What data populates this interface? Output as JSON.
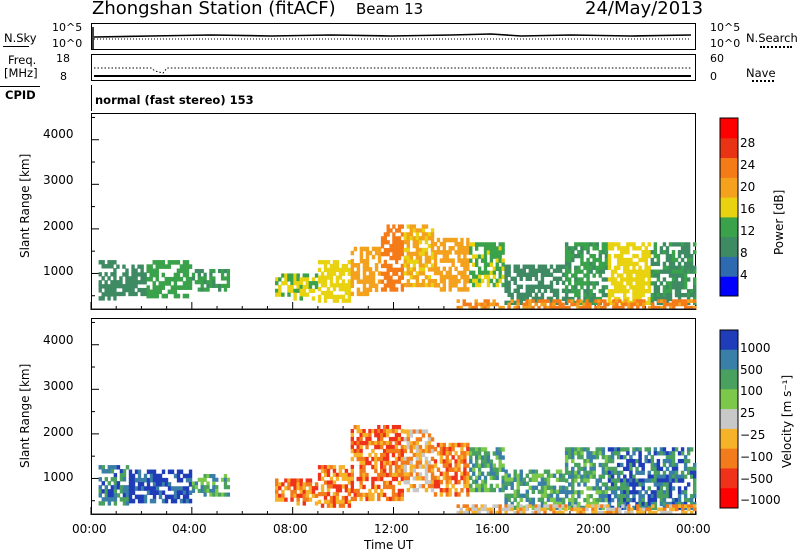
{
  "header": {
    "station": "Zhongshan Station (fitACF)",
    "beam": "Beam 13",
    "date": "24/May/2013"
  },
  "top_panel": {
    "nsky_label": "N.Sky",
    "nsky_top": "10^5",
    "nsky_bottom": "10^0",
    "nsearch_label": "N.Search",
    "nsearch_top": "10^5",
    "nsearch_bottom": "10^0",
    "freq_label": "Freq.",
    "freq_unit": "[MHz]",
    "freq_top": "18",
    "freq_bottom": "8",
    "nave_label": "Nave",
    "nave_top": "60",
    "nave_bottom": "0",
    "cpid_label": "CPID",
    "cpid_value": "normal (fast stereo) 153"
  },
  "colors": {
    "power_scale": [
      "#0000ff",
      "#2e6ab0",
      "#3e8a63",
      "#3aa24a",
      "#e9d20f",
      "#f4a11e",
      "#f57a18",
      "#e83314",
      "#ff0000"
    ],
    "velocity_scale": [
      "#ff0000",
      "#f0321a",
      "#f27c1c",
      "#f6b229",
      "#c8c8c8",
      "#7cc84a",
      "#4aa05e",
      "#3a7fa8",
      "#1f3db8"
    ]
  },
  "chart_data": [
    {
      "type": "heatmap",
      "name": "power",
      "ylabel": "Slant Range [km]",
      "xlabel": "",
      "ylim": [
        180,
        4600
      ],
      "yticks": [
        "1000",
        "2000",
        "3000",
        "4000"
      ],
      "xlim_hours": [
        0,
        24
      ],
      "colorbar_label": "Power [dB]",
      "colorbar_ticks": [
        "4",
        "8",
        "12",
        "16",
        "20",
        "24",
        "28"
      ],
      "colorbar_range": [
        0,
        32
      ],
      "patches": [
        {
          "t0": 0.3,
          "t1": 1.0,
          "r0": 400,
          "r1": 1300,
          "level": 10
        },
        {
          "t0": 1.0,
          "t1": 2.2,
          "r0": 500,
          "r1": 1200,
          "level": 9
        },
        {
          "t0": 2.2,
          "t1": 4.0,
          "r0": 450,
          "r1": 1300,
          "level": 13
        },
        {
          "t0": 4.0,
          "t1": 5.5,
          "r0": 600,
          "r1": 1100,
          "level": 12
        },
        {
          "t0": 7.3,
          "t1": 9.0,
          "r0": 400,
          "r1": 1000,
          "level": 16
        },
        {
          "t0": 9.0,
          "t1": 10.3,
          "r0": 350,
          "r1": 1300,
          "level": 18
        },
        {
          "t0": 10.3,
          "t1": 11.5,
          "r0": 500,
          "r1": 1600,
          "level": 22
        },
        {
          "t0": 11.5,
          "t1": 12.4,
          "r0": 600,
          "r1": 2100,
          "level": 26
        },
        {
          "t0": 12.4,
          "t1": 13.6,
          "r0": 700,
          "r1": 2100,
          "level": 20
        },
        {
          "t0": 13.6,
          "t1": 15.0,
          "r0": 600,
          "r1": 1800,
          "level": 22
        },
        {
          "t0": 15.0,
          "t1": 16.4,
          "r0": 700,
          "r1": 1700,
          "level": 15
        },
        {
          "t0": 16.4,
          "t1": 18.8,
          "r0": 300,
          "r1": 1200,
          "level": 10
        },
        {
          "t0": 18.8,
          "t1": 20.5,
          "r0": 300,
          "r1": 1700,
          "level": 12
        },
        {
          "t0": 20.5,
          "t1": 22.2,
          "r0": 300,
          "r1": 1700,
          "level": 17
        },
        {
          "t0": 22.2,
          "t1": 24.0,
          "r0": 300,
          "r1": 1700,
          "level": 11
        },
        {
          "t0": 14.5,
          "t1": 24.0,
          "r0": 200,
          "r1": 420,
          "level": 24
        }
      ]
    },
    {
      "type": "heatmap",
      "name": "velocity",
      "ylabel": "Slant Range [km]",
      "xlabel": "Time UT",
      "ylim": [
        180,
        4600
      ],
      "yticks": [
        "1000",
        "2000",
        "3000",
        "4000"
      ],
      "xticks": [
        "00:00",
        "04:00",
        "08:00",
        "12:00",
        "16:00",
        "20:00",
        "00:00"
      ],
      "xlim_hours": [
        0,
        24
      ],
      "colorbar_label": "Velocity [m s⁻¹]",
      "colorbar_ticks": [
        "1000",
        "500",
        "100",
        "25",
        "−25",
        "−100",
        "−500",
        "−1000"
      ],
      "patches": [
        {
          "t0": 0.3,
          "t1": 1.5,
          "r0": 400,
          "r1": 1300,
          "level": 7
        },
        {
          "t0": 1.5,
          "t1": 4.0,
          "r0": 450,
          "r1": 1200,
          "level": 8
        },
        {
          "t0": 4.0,
          "t1": 5.5,
          "r0": 600,
          "r1": 1100,
          "level": 6
        },
        {
          "t0": 7.3,
          "t1": 9.0,
          "r0": 400,
          "r1": 1000,
          "level": 2
        },
        {
          "t0": 9.0,
          "t1": 10.3,
          "r0": 350,
          "r1": 1300,
          "level": 2
        },
        {
          "t0": 10.3,
          "t1": 12.4,
          "r0": 500,
          "r1": 2200,
          "level": 2
        },
        {
          "t0": 12.4,
          "t1": 13.6,
          "r0": 700,
          "r1": 2100,
          "level": 3
        },
        {
          "t0": 13.6,
          "t1": 15.0,
          "r0": 600,
          "r1": 1800,
          "level": 2
        },
        {
          "t0": 15.0,
          "t1": 16.4,
          "r0": 700,
          "r1": 1700,
          "level": 6
        },
        {
          "t0": 16.4,
          "t1": 18.8,
          "r0": 300,
          "r1": 1200,
          "level": 6
        },
        {
          "t0": 18.8,
          "t1": 20.5,
          "r0": 300,
          "r1": 1700,
          "level": 6
        },
        {
          "t0": 20.5,
          "t1": 22.2,
          "r0": 300,
          "r1": 1700,
          "level": 7
        },
        {
          "t0": 22.2,
          "t1": 24.0,
          "r0": 300,
          "r1": 1700,
          "level": 7
        },
        {
          "t0": 14.5,
          "t1": 24.0,
          "r0": 200,
          "r1": 420,
          "level": 3
        }
      ]
    }
  ]
}
